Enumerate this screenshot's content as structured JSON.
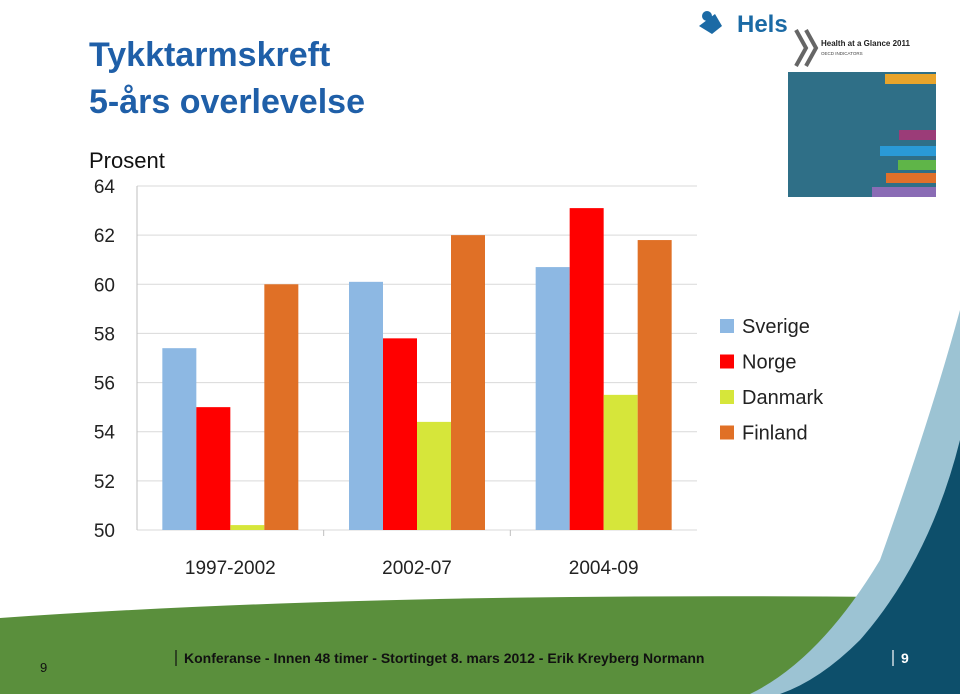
{
  "header": {
    "title_line1": "Tykktarmskreft",
    "title_line2": "5-års overlevelse",
    "logo": "Helse",
    "cover_title": "Health at a Glance 2011",
    "cover_subtitle": "OECD INDICATORS"
  },
  "chart_data": {
    "type": "bar",
    "y_label": "Prosent",
    "categories": [
      "1997-2002",
      "2002-07",
      "2004-09"
    ],
    "series": [
      {
        "name": "Sverige",
        "color": "#8db8e3",
        "values": [
          57.4,
          60.1,
          60.7
        ]
      },
      {
        "name": "Norge",
        "color": "#ff0000",
        "values": [
          55.0,
          57.8,
          63.1
        ]
      },
      {
        "name": "Danmark",
        "color": "#d6e63a",
        "values": [
          50.2,
          54.4,
          55.5
        ]
      },
      {
        "name": "Finland",
        "color": "#e07026",
        "values": [
          60.0,
          62.0,
          61.8
        ]
      }
    ],
    "ylim": [
      50,
      64
    ],
    "yticks": [
      50,
      52,
      54,
      56,
      58,
      60,
      62,
      64
    ],
    "grid": true,
    "legend": "right"
  },
  "footer": {
    "text": "Konferanse - Innen 48 timer - Stortinget 8. mars 2012 - Erik Kreyberg Normann",
    "page_left": "9",
    "page_right": "9"
  }
}
